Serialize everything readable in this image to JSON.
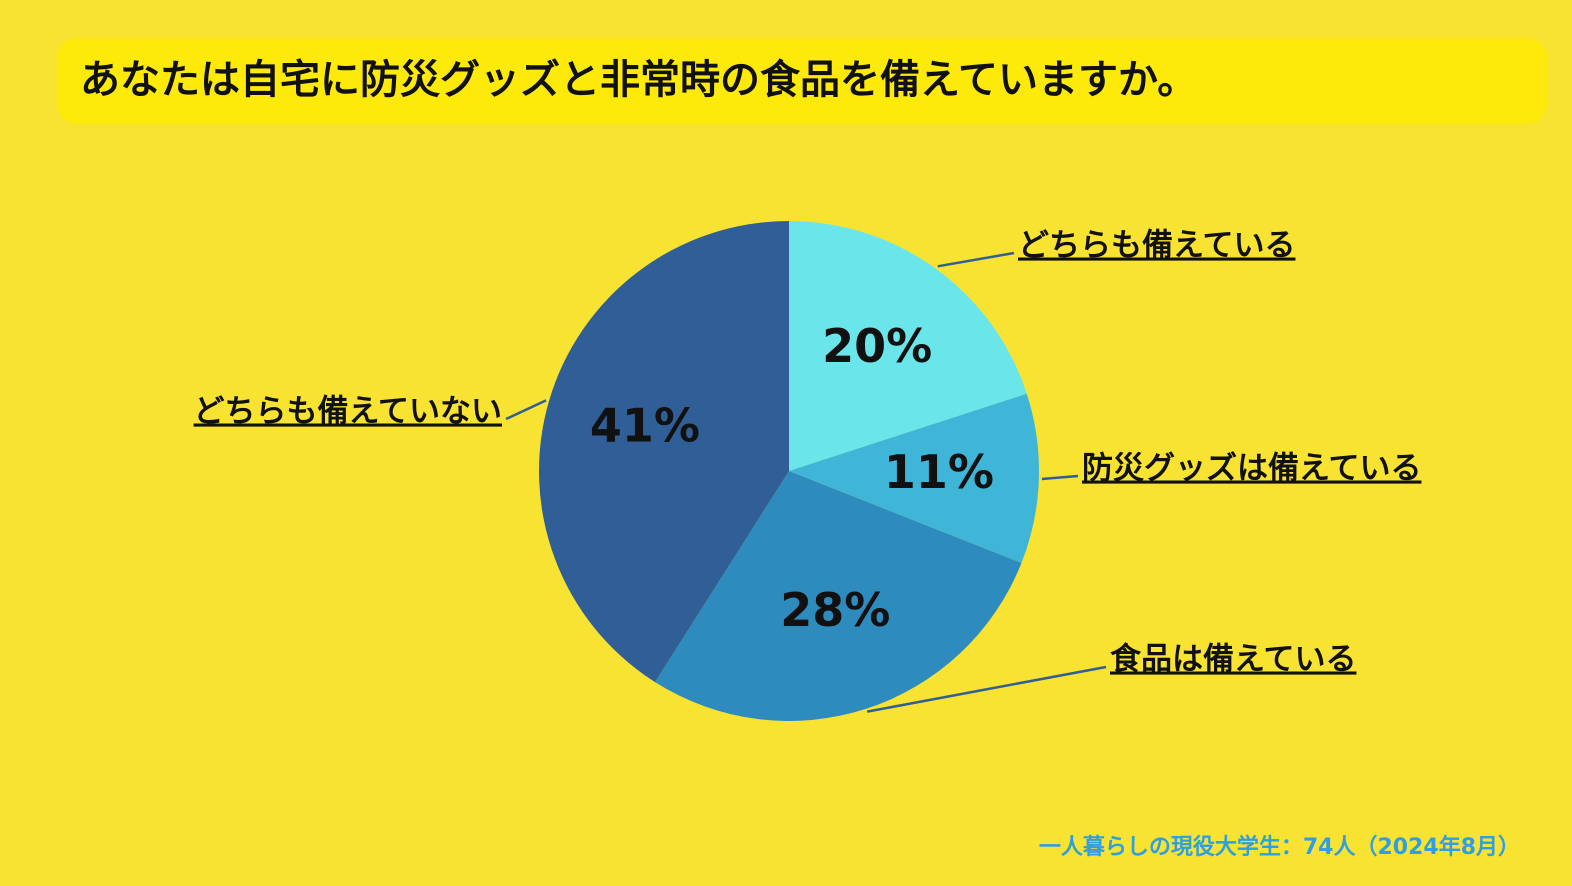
{
  "chart_data": {
    "type": "pie",
    "title": "あなたは自宅に防災グッズと非常時の食品を備えていますか。",
    "categories": [
      "どちらも備えている",
      "防災グッズは備えている",
      "食品は備えている",
      "どちらも備えていない"
    ],
    "values": [
      20,
      11,
      28,
      41
    ],
    "value_labels": [
      "20%",
      "11%",
      "28%",
      "41%"
    ],
    "colors": [
      "#6ae6ea",
      "#3fb5d8",
      "#2e8bbe",
      "#2f5f96"
    ],
    "note": "一人暮らしの現役大学生：74人（2024年8月）"
  }
}
